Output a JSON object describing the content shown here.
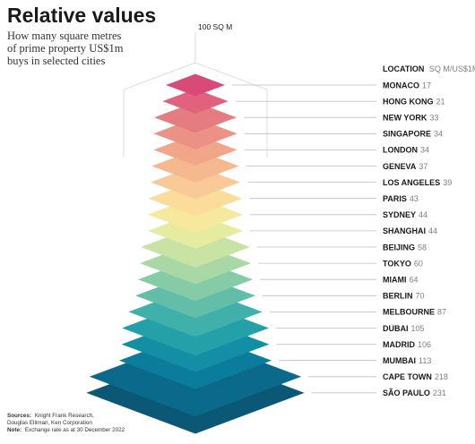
{
  "title": "Relative values",
  "subtitle_lines": [
    "How many square metres",
    "of prime property US$1m",
    "buys in selected cities"
  ],
  "scale_label": "100 SQ M",
  "legend_header": {
    "name": "LOCATION",
    "unit": "SQ M/US$1M"
  },
  "footer": {
    "sources_label": "Sources:",
    "sources_lines": [
      "Knight Frank Research,",
      "Douglas Elliman, Ken Corporation"
    ],
    "note_label": "Note:",
    "note_text": "Exchange rate as at 30 December 2022"
  },
  "chart_data": {
    "type": "bar",
    "title": "Relative values",
    "subtitle": "How many square metres of prime property US$1m buys in selected cities",
    "unit": "SQ M/US$1M",
    "reference": {
      "label": "100 SQ M",
      "value": 100
    },
    "categories": [
      "MONACO",
      "HONG KONG",
      "NEW YORK",
      "SINGAPORE",
      "LONDON",
      "GENEVA",
      "LOS ANGELES",
      "PARIS",
      "SYDNEY",
      "SHANGHAI",
      "BEIJING",
      "TOKYO",
      "MIAMI",
      "BERLIN",
      "MELBOURNE",
      "DUBAI",
      "MADRID",
      "MUMBAI",
      "CAPE TOWN",
      "SÃO PAULO"
    ],
    "values": [
      17,
      21,
      33,
      34,
      34,
      37,
      39,
      43,
      44,
      44,
      58,
      60,
      64,
      70,
      87,
      105,
      106,
      113,
      218,
      231
    ],
    "colors": [
      "#d94a78",
      "#e0627e",
      "#e57c82",
      "#eb9185",
      "#f1a589",
      "#f6b88f",
      "#f9ca97",
      "#fbdc9a",
      "#f6e99d",
      "#e5ec9f",
      "#c8e3a3",
      "#a9d8a6",
      "#86cba8",
      "#62bea9",
      "#3fb0aa",
      "#24a0a8",
      "#138ea4",
      "#0c7c9c",
      "#0b6a8c",
      "#0b5776"
    ]
  }
}
